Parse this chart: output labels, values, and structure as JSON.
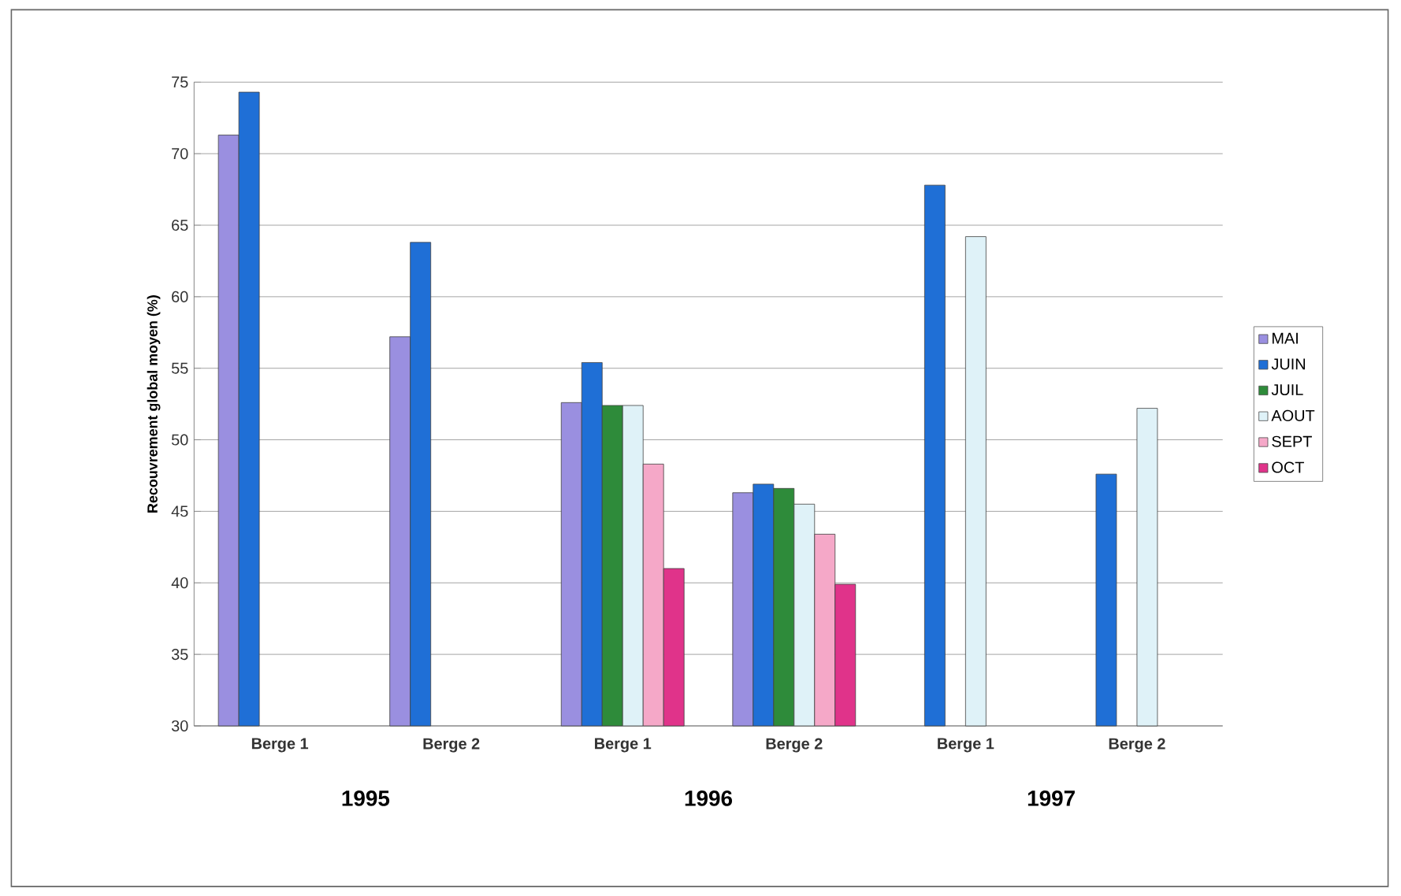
{
  "chart_data": {
    "type": "bar",
    "ylabel": "Recouvrement global moyen (%)",
    "categories": [
      "Berge 1",
      "Berge 2",
      "Berge 1",
      "Berge 2",
      "Berge 1",
      "Berge 2"
    ],
    "annotations": [
      "1995",
      "1996",
      "1997"
    ],
    "series": [
      {
        "name": "MAI",
        "color": "#9a8fe0",
        "values": [
          71.3,
          57.2,
          52.6,
          46.3,
          null,
          null
        ]
      },
      {
        "name": "JUIN",
        "color": "#1f6fd6",
        "values": [
          74.3,
          63.8,
          55.4,
          46.9,
          67.8,
          47.6
        ]
      },
      {
        "name": "JUIL",
        "color": "#2e8b3a",
        "values": [
          null,
          null,
          52.4,
          46.6,
          null,
          null
        ]
      },
      {
        "name": "AOUT",
        "color": "#dff2f8",
        "values": [
          null,
          null,
          52.4,
          45.5,
          64.2,
          52.2
        ]
      },
      {
        "name": "SEPT",
        "color": "#f5a8c8",
        "values": [
          null,
          null,
          48.3,
          43.4,
          null,
          null
        ]
      },
      {
        "name": "OCT",
        "color": "#e0338a",
        "values": [
          null,
          null,
          41.0,
          39.9,
          null,
          null
        ]
      }
    ],
    "ylim": [
      30,
      75
    ],
    "yticks": [
      30,
      35,
      40,
      45,
      50,
      55,
      60,
      65,
      70,
      75
    ],
    "grid": "y",
    "legend": "right"
  }
}
